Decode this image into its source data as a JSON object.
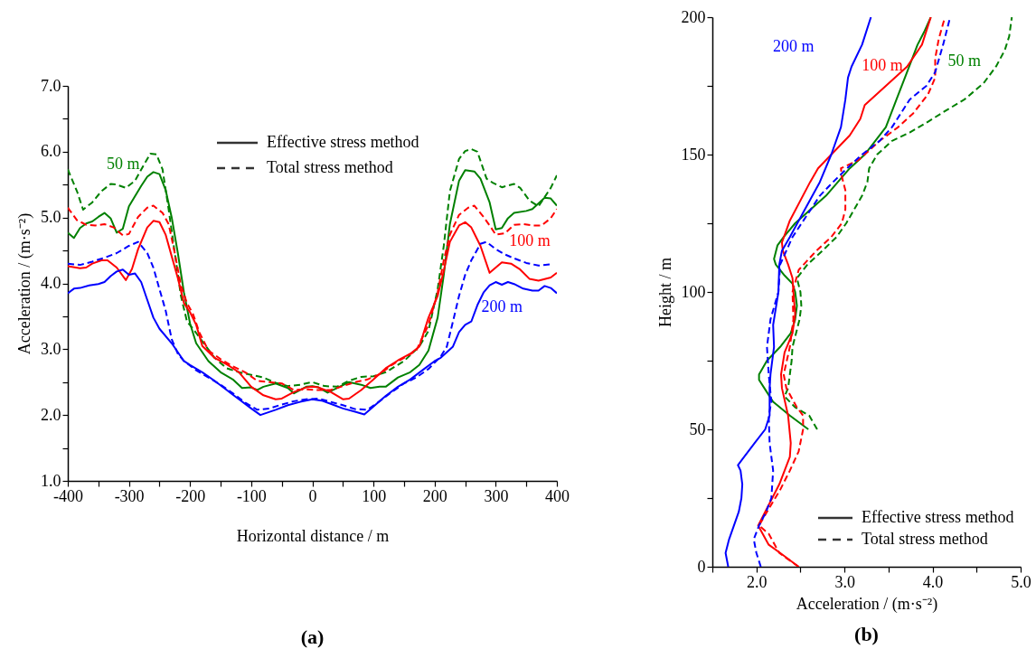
{
  "chart_data": [
    {
      "type": "line",
      "title": "(a)",
      "xlabel": "Horizontal distance / m",
      "ylabel": "Acceleration / (m·s⁻²)",
      "xlim": [
        -400,
        400
      ],
      "ylim": [
        1,
        7
      ],
      "xticks": [
        -400,
        {
          "value": -350,
          "label": null
        },
        -300,
        {
          "value": -250,
          "label": null
        },
        -200,
        {
          "value": -150,
          "label": null
        },
        -100,
        {
          "value": -50,
          "label": null
        },
        0,
        {
          "value": 50,
          "label": null
        },
        100,
        {
          "value": 150,
          "label": null
        },
        200,
        {
          "value": 250,
          "label": null
        },
        300,
        {
          "value": 350,
          "label": null
        },
        400
      ],
      "yticks": [
        {
          "value": 1,
          "label": "1.0"
        },
        {
          "value": 1.5,
          "label": null
        },
        {
          "value": 2,
          "label": "2.0"
        },
        {
          "value": 2.5,
          "label": null
        },
        {
          "value": 3,
          "label": "3.0"
        },
        {
          "value": 3.5,
          "label": null
        },
        {
          "value": 4,
          "label": "4.0"
        },
        {
          "value": 4.5,
          "label": null
        },
        {
          "value": 5,
          "label": "5.0"
        },
        {
          "value": 5.5,
          "label": null
        },
        {
          "value": 6,
          "label": "6.0"
        },
        {
          "value": 6.5,
          "label": null
        },
        {
          "value": 7,
          "label": "7.0"
        }
      ],
      "annotations": [
        "Effective stress method",
        "Total stress method",
        {
          "text": "50 m",
          "x": -305,
          "y": 5.45
        },
        {
          "text": "100 m",
          "x": 360,
          "y": 4.88
        },
        {
          "text": "200 m",
          "x": 260,
          "y": 3.42
        }
      ],
      "series": [
        {
          "color": "#008000",
          "line_style": "solid",
          "x": [
            -400,
            -390,
            -380,
            -370,
            -360,
            -350,
            -340,
            -330,
            -320,
            -310,
            -300,
            -280,
            -270,
            -260,
            -250,
            -240,
            -230,
            -220,
            -210,
            -200,
            -190,
            -170,
            -150,
            -130,
            -115,
            -100,
            -90,
            -80,
            -60,
            -40,
            -30,
            -10,
            0,
            10,
            25,
            40,
            60,
            80,
            95,
            110,
            120,
            140,
            160,
            175,
            190,
            205,
            215,
            225,
            240,
            250,
            265,
            275,
            290,
            300,
            310,
            320,
            330,
            350,
            360,
            380,
            390,
            400
          ],
          "values": [
            4.77,
            4.69,
            4.84,
            4.91,
            4.94,
            5.01,
            5.07,
            4.99,
            4.77,
            4.83,
            5.17,
            5.48,
            5.62,
            5.69,
            5.66,
            5.42,
            5.0,
            4.46,
            3.86,
            3.39,
            3.09,
            2.82,
            2.65,
            2.54,
            2.41,
            2.42,
            2.38,
            2.43,
            2.48,
            2.41,
            2.33,
            2.43,
            2.44,
            2.42,
            2.34,
            2.41,
            2.5,
            2.46,
            2.41,
            2.43,
            2.43,
            2.57,
            2.65,
            2.76,
            2.98,
            3.48,
            4.13,
            4.9,
            5.56,
            5.72,
            5.7,
            5.59,
            5.23,
            4.82,
            4.84,
            4.99,
            5.07,
            5.1,
            5.13,
            5.3,
            5.29,
            5.18
          ]
        },
        {
          "color": "#008000",
          "line_style": "dashed",
          "x": [
            -400,
            -385,
            -375,
            -360,
            -345,
            -330,
            -320,
            -305,
            -290,
            -275,
            -265,
            -255,
            -245,
            -235,
            -225,
            -215,
            -205,
            -195,
            -180,
            -160,
            -140,
            -120,
            -100,
            -80,
            -60,
            -40,
            -20,
            0,
            20,
            40,
            60,
            80,
            100,
            120,
            150,
            175,
            190,
            205,
            215,
            225,
            240,
            250,
            260,
            270,
            285,
            295,
            310,
            330,
            340,
            355,
            370,
            380,
            390,
            400
          ],
          "values": [
            5.73,
            5.4,
            5.12,
            5.23,
            5.4,
            5.51,
            5.5,
            5.45,
            5.56,
            5.81,
            5.97,
            5.96,
            5.73,
            5.12,
            4.46,
            3.81,
            3.42,
            3.31,
            3.12,
            2.87,
            2.71,
            2.65,
            2.61,
            2.57,
            2.49,
            2.44,
            2.46,
            2.5,
            2.44,
            2.43,
            2.52,
            2.58,
            2.59,
            2.65,
            2.82,
            3.04,
            3.28,
            3.91,
            4.57,
            5.4,
            5.89,
            6.01,
            6.04,
            6.0,
            5.59,
            5.53,
            5.46,
            5.51,
            5.45,
            5.26,
            5.17,
            5.31,
            5.45,
            5.64
          ]
        },
        {
          "color": "#ff0000",
          "line_style": "solid",
          "x": [
            -400,
            -380,
            -370,
            -360,
            -345,
            -335,
            -320,
            -305,
            -295,
            -285,
            -270,
            -260,
            -250,
            -240,
            -230,
            -220,
            -210,
            -200,
            -190,
            -180,
            -160,
            -140,
            -120,
            -100,
            -80,
            -60,
            -50,
            -30,
            -10,
            0,
            10,
            30,
            50,
            60,
            80,
            100,
            120,
            140,
            160,
            175,
            190,
            205,
            215,
            225,
            240,
            250,
            260,
            275,
            290,
            300,
            310,
            325,
            340,
            355,
            370,
            390,
            400
          ],
          "values": [
            4.26,
            4.23,
            4.24,
            4.3,
            4.35,
            4.35,
            4.24,
            4.05,
            4.22,
            4.52,
            4.85,
            4.95,
            4.93,
            4.74,
            4.41,
            4.08,
            3.7,
            3.56,
            3.37,
            3.05,
            2.87,
            2.77,
            2.65,
            2.43,
            2.3,
            2.24,
            2.25,
            2.35,
            2.42,
            2.43,
            2.42,
            2.35,
            2.24,
            2.25,
            2.38,
            2.54,
            2.71,
            2.83,
            2.93,
            3.04,
            3.48,
            3.81,
            4.19,
            4.63,
            4.88,
            4.93,
            4.85,
            4.57,
            4.16,
            4.24,
            4.32,
            4.3,
            4.21,
            4.07,
            4.04,
            4.09,
            4.16
          ]
        },
        {
          "color": "#ff0000",
          "line_style": "dashed",
          "x": [
            -400,
            -385,
            -370,
            -355,
            -340,
            -325,
            -310,
            -300,
            -285,
            -270,
            -260,
            -245,
            -235,
            -225,
            -215,
            -205,
            -195,
            -185,
            -170,
            -150,
            -130,
            -110,
            -90,
            -70,
            -50,
            -30,
            -10,
            10,
            30,
            50,
            70,
            90,
            110,
            130,
            150,
            170,
            190,
            205,
            215,
            225,
            240,
            255,
            265,
            280,
            290,
            300,
            315,
            330,
            345,
            360,
            375,
            390,
            400
          ],
          "values": [
            5.15,
            4.96,
            4.89,
            4.88,
            4.9,
            4.85,
            4.73,
            4.75,
            5.01,
            5.15,
            5.18,
            5.07,
            4.9,
            4.46,
            3.97,
            3.7,
            3.53,
            3.26,
            2.98,
            2.85,
            2.74,
            2.65,
            2.52,
            2.5,
            2.48,
            2.38,
            2.39,
            2.38,
            2.38,
            2.44,
            2.5,
            2.54,
            2.62,
            2.76,
            2.87,
            2.98,
            3.37,
            3.86,
            4.35,
            4.74,
            5.04,
            5.15,
            5.18,
            5.01,
            4.88,
            4.74,
            4.76,
            4.89,
            4.9,
            4.88,
            4.88,
            4.99,
            5.13
          ]
        },
        {
          "color": "#0000ff",
          "line_style": "solid",
          "x": [
            -400,
            -390,
            -380,
            -365,
            -350,
            -340,
            -330,
            -320,
            -310,
            -300,
            -290,
            -280,
            -270,
            -260,
            -250,
            -230,
            -210,
            -200,
            -180,
            -160,
            -140,
            -120,
            -100,
            -85,
            -60,
            -40,
            -20,
            0,
            15,
            30,
            50,
            70,
            85,
            100,
            120,
            140,
            160,
            180,
            200,
            210,
            230,
            240,
            250,
            260,
            270,
            280,
            290,
            300,
            310,
            320,
            330,
            345,
            360,
            370,
            380,
            390,
            400
          ],
          "values": [
            3.85,
            3.92,
            3.93,
            3.97,
            3.99,
            4.02,
            4.11,
            4.18,
            4.21,
            4.13,
            4.15,
            4.02,
            3.75,
            3.48,
            3.31,
            3.09,
            2.82,
            2.76,
            2.65,
            2.52,
            2.38,
            2.24,
            2.1,
            2.0,
            2.08,
            2.15,
            2.2,
            2.24,
            2.22,
            2.17,
            2.1,
            2.05,
            2.01,
            2.13,
            2.29,
            2.43,
            2.54,
            2.68,
            2.82,
            2.87,
            3.04,
            3.26,
            3.37,
            3.42,
            3.67,
            3.86,
            3.97,
            4.02,
            3.98,
            4.02,
            3.99,
            3.92,
            3.89,
            3.89,
            3.96,
            3.93,
            3.85
          ]
        },
        {
          "color": "#0000ff",
          "line_style": "dashed",
          "x": [
            -400,
            -380,
            -360,
            -340,
            -320,
            -300,
            -285,
            -270,
            -260,
            -250,
            -240,
            -230,
            -220,
            -210,
            -190,
            -170,
            -150,
            -130,
            -110,
            -90,
            -70,
            -50,
            -30,
            -10,
            10,
            30,
            50,
            70,
            90,
            110,
            130,
            150,
            170,
            190,
            210,
            220,
            230,
            240,
            250,
            260,
            275,
            285,
            300,
            315,
            330,
            350,
            370,
            390
          ],
          "values": [
            4.3,
            4.28,
            4.33,
            4.39,
            4.46,
            4.57,
            4.63,
            4.46,
            4.24,
            3.91,
            3.59,
            3.15,
            2.93,
            2.82,
            2.68,
            2.57,
            2.46,
            2.33,
            2.19,
            2.08,
            2.1,
            2.16,
            2.21,
            2.24,
            2.25,
            2.2,
            2.15,
            2.09,
            2.08,
            2.21,
            2.35,
            2.48,
            2.57,
            2.7,
            2.89,
            3.04,
            3.42,
            3.81,
            4.13,
            4.35,
            4.6,
            4.63,
            4.52,
            4.44,
            4.38,
            4.31,
            4.27,
            4.29
          ]
        }
      ]
    },
    {
      "type": "line",
      "title": "(b)",
      "xlabel": "Acceleration / (m·s⁻²)",
      "ylabel": "Height / m",
      "xlim": [
        1.5,
        5
      ],
      "ylim": [
        0,
        200
      ],
      "xticks": [
        {
          "value": 1.5,
          "label": null
        },
        {
          "value": 2,
          "label": "2.0"
        },
        {
          "value": 2.5,
          "label": null
        },
        {
          "value": 3,
          "label": "3.0"
        },
        {
          "value": 3.5,
          "label": null
        },
        {
          "value": 4,
          "label": "4.0"
        },
        {
          "value": 4.5,
          "label": null
        },
        {
          "value": 5,
          "label": "5.0"
        }
      ],
      "yticks": [
        0,
        {
          "value": 25,
          "label": null
        },
        50,
        {
          "value": 75,
          "label": null
        },
        100,
        {
          "value": 125,
          "label": null
        },
        150,
        {
          "value": 175,
          "label": null
        },
        200
      ],
      "annotations": [
        "Effective stress method",
        "Total stress method",
        {
          "text": "50 m",
          "x": 4.72,
          "y": 182
        },
        {
          "text": "100 m",
          "x": 3.88,
          "y": 190
        },
        {
          "text": "200 m",
          "x": 3.2,
          "y": 190
        }
      ],
      "series": [
        {
          "color": "#008000",
          "line_style": "solid",
          "x": [
            2.59,
            2.38,
            2.19,
            2.09,
            2.03,
            2.03,
            2.12,
            2.27,
            2.39,
            2.44,
            2.46,
            2.44,
            2.41,
            2.32,
            2.22,
            2.2,
            2.24,
            2.31,
            2.44,
            2.79,
            3.06,
            3.23,
            3.35,
            3.47,
            3.59,
            3.71,
            3.83,
            3.91,
            3.98
          ],
          "values": [
            50,
            55,
            60,
            65,
            68,
            70,
            75,
            80,
            85,
            90,
            95,
            100,
            103,
            106,
            110,
            112,
            117,
            120,
            125,
            135,
            145,
            150,
            155,
            160,
            170,
            180,
            190,
            195,
            200
          ]
        },
        {
          "color": "#008000",
          "line_style": "dashed",
          "x": [
            2.69,
            2.6,
            2.44,
            2.32,
            2.36,
            2.38,
            2.4,
            2.41,
            2.49,
            2.51,
            2.5,
            2.46,
            2.58,
            2.75,
            2.91,
            3.02,
            3.2,
            3.26,
            3.28,
            3.37,
            3.54,
            3.74,
            3.95,
            4.15,
            4.36,
            4.58,
            4.72,
            4.82,
            4.87,
            4.9
          ],
          "values": [
            50,
            55,
            58,
            62,
            65,
            70,
            75,
            80,
            90,
            95,
            100,
            105,
            110,
            115,
            120,
            125,
            135,
            140,
            145,
            150,
            155,
            158,
            162,
            166,
            170,
            176,
            182,
            188,
            193,
            200
          ]
        },
        {
          "color": "#ff0000",
          "line_style": "solid",
          "x": [
            2.48,
            2.27,
            2.14,
            2.02,
            2.1,
            2.26,
            2.38,
            2.39,
            2.36,
            2.29,
            2.28,
            2.32,
            2.41,
            2.44,
            2.42,
            2.41,
            2.36,
            2.3,
            2.29,
            2.38,
            2.61,
            2.7,
            2.85,
            3.06,
            3.18,
            3.23,
            3.47,
            3.71,
            3.88,
            3.98
          ],
          "values": [
            0,
            5,
            8,
            15,
            20,
            30,
            40,
            45,
            55,
            65,
            70,
            78,
            85,
            92,
            100,
            105,
            110,
            115,
            118,
            126,
            140,
            145,
            150,
            157,
            163,
            168,
            175,
            182,
            190,
            200
          ]
        },
        {
          "color": "#ff0000",
          "line_style": "dashed",
          "x": [
            2.48,
            2.26,
            2.14,
            2.03,
            2.12,
            2.27,
            2.38,
            2.48,
            2.53,
            2.53,
            2.46,
            2.34,
            2.31,
            2.38,
            2.42,
            2.41,
            2.48,
            2.68,
            2.85,
            2.97,
            3.01,
            3.01,
            2.97,
            2.96,
            3.16,
            3.4,
            3.61,
            3.78,
            3.95,
            4.03,
            4.03,
            4.07,
            4.14
          ],
          "values": [
            0,
            5,
            12,
            15,
            20,
            28,
            35,
            42,
            50,
            55,
            58,
            65,
            70,
            80,
            90,
            100,
            108,
            115,
            120,
            125,
            130,
            137,
            142,
            145,
            148,
            155,
            160,
            165,
            172,
            178,
            185,
            192,
            200
          ]
        },
        {
          "color": "#0000ff",
          "line_style": "solid",
          "x": [
            1.68,
            1.65,
            1.69,
            1.8,
            1.83,
            1.84,
            1.82,
            1.79,
            1.98,
            2.1,
            2.15,
            2.15,
            2.16,
            2.2,
            2.19,
            2.21,
            2.25,
            2.26,
            2.29,
            2.38,
            2.55,
            2.72,
            2.85,
            2.96,
            3.01,
            3.04,
            3.08,
            3.2,
            3.3
          ],
          "values": [
            0,
            5,
            10,
            20,
            25,
            30,
            35,
            37,
            45,
            50,
            55,
            65,
            70,
            80,
            88,
            92,
            100,
            110,
            115,
            120,
            130,
            140,
            150,
            160,
            170,
            178,
            182,
            190,
            200
          ]
        },
        {
          "color": "#0000ff",
          "line_style": "dashed",
          "x": [
            2.05,
            2.0,
            1.97,
            2.03,
            2.11,
            2.17,
            2.19,
            2.15,
            2.14,
            2.17,
            2.14,
            2.12,
            2.16,
            2.25,
            2.27,
            2.41,
            2.72,
            2.87,
            3.03,
            3.2,
            3.4,
            3.54,
            3.74,
            3.93,
            4.03,
            4.12,
            4.2
          ],
          "values": [
            0,
            5,
            10,
            15,
            20,
            25,
            35,
            45,
            55,
            60,
            70,
            80,
            90,
            100,
            110,
            120,
            135,
            140,
            145,
            150,
            155,
            160,
            170,
            175,
            180,
            190,
            200
          ]
        }
      ]
    }
  ]
}
